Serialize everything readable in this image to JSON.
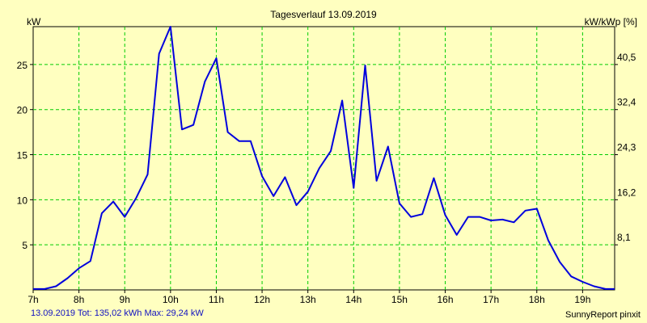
{
  "chart_data": {
    "type": "line",
    "title": "Tagesverlauf 13.09.2019",
    "ylabel": "kW",
    "ylabel_right": "kW/kWp [%]",
    "xlim": [
      7,
      19.7
    ],
    "ylim": [
      0,
      29.2
    ],
    "grid": true,
    "x_ticks": [
      7,
      8,
      9,
      10,
      11,
      12,
      13,
      14,
      15,
      16,
      17,
      18,
      19
    ],
    "x_tick_labels": [
      "7h",
      "8h",
      "9h",
      "10h",
      "11h",
      "12h",
      "13h",
      "14h",
      "15h",
      "16h",
      "17h",
      "18h",
      "19h"
    ],
    "y_ticks": [
      5,
      10,
      15,
      20,
      25
    ],
    "y_tick_labels": [
      "5",
      "10",
      "15",
      "20",
      "25"
    ],
    "y2_tick_labels": [
      "8,1",
      "16,2",
      "24,3",
      "32,4",
      "40,5"
    ],
    "series": [
      {
        "color": "#0000dd",
        "x": [
          7.0,
          7.25,
          7.5,
          7.75,
          8.0,
          8.25,
          8.5,
          8.75,
          9.0,
          9.25,
          9.5,
          9.75,
          10.0,
          10.25,
          10.5,
          10.75,
          11.0,
          11.25,
          11.5,
          11.75,
          12.0,
          12.25,
          12.5,
          12.75,
          13.0,
          13.25,
          13.5,
          13.75,
          14.0,
          14.25,
          14.5,
          14.75,
          15.0,
          15.25,
          15.5,
          15.75,
          16.0,
          16.25,
          16.5,
          16.75,
          17.0,
          17.25,
          17.5,
          17.75,
          18.0,
          18.25,
          18.5,
          18.75,
          19.0,
          19.25,
          19.5,
          19.7
        ],
        "values": [
          0.1,
          0.1,
          0.4,
          1.3,
          2.4,
          3.2,
          8.5,
          9.8,
          8.1,
          10.2,
          12.8,
          26.2,
          29.2,
          17.8,
          18.3,
          23.1,
          25.7,
          17.5,
          16.5,
          16.5,
          12.6,
          10.4,
          12.5,
          9.4,
          10.9,
          13.5,
          15.4,
          21.0,
          11.3,
          24.9,
          12.1,
          15.9,
          9.6,
          8.1,
          8.4,
          12.4,
          8.3,
          6.1,
          8.1,
          8.1,
          7.7,
          7.8,
          7.5,
          8.8,
          9.0,
          5.5,
          3.1,
          1.5,
          0.9,
          0.4,
          0.1,
          0.1
        ]
      }
    ]
  },
  "footer_left": "13.09.2019 Tot: 135,02 kWh Max: 29,24 kW",
  "footer_right": "SunnyReport pinxit"
}
